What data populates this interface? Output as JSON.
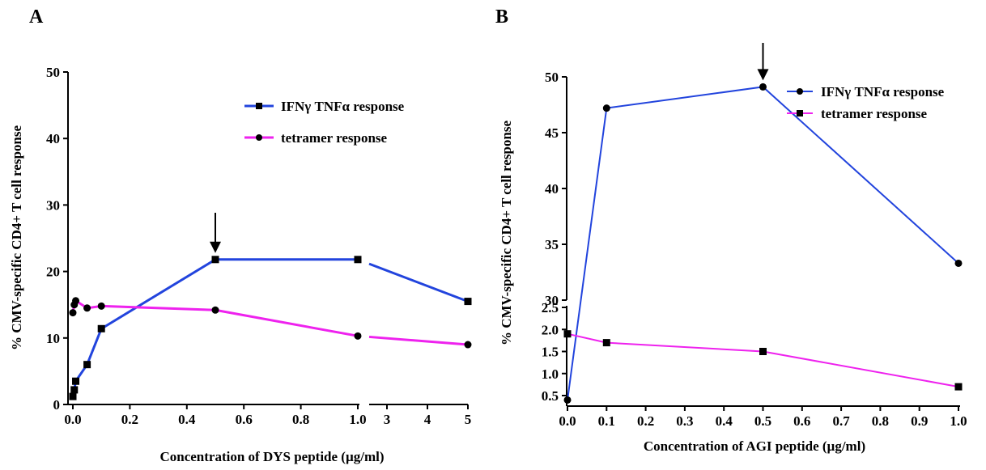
{
  "colors": {
    "blue": "#2244dd",
    "magenta": "#ee22ee",
    "axis": "#000000"
  },
  "chart_data": [
    {
      "panel_label": "A",
      "type": "line",
      "xlabel": "Concentration of DYS peptide (µg/ml)",
      "ylabel": "% CMV-specific CD4+ T cell response",
      "ylim": [
        0,
        50
      ],
      "y_ticks": [
        "0",
        "10",
        "20",
        "30",
        "40",
        "50"
      ],
      "x_broken": true,
      "x_segments": [
        {
          "xlim": [
            0,
            1.0
          ],
          "ticks": [
            "0.0",
            "0.2",
            "0.4",
            "0.6",
            "0.8",
            "1.0"
          ]
        },
        {
          "xlim": [
            2.6,
            5
          ],
          "ticks": [
            "3",
            "4",
            "5"
          ]
        }
      ],
      "series": [
        {
          "name": "IFNγ TNFα response",
          "color_key": "blue",
          "marker": "square",
          "x": [
            0,
            0.005,
            0.01,
            0.05,
            0.1,
            0.5,
            1.0,
            5
          ],
          "y": [
            1.2,
            2.2,
            3.5,
            6.0,
            11.4,
            21.8,
            21.8,
            15.5
          ]
        },
        {
          "name": "tetramer response",
          "color_key": "magenta",
          "marker": "circle",
          "x": [
            0,
            0.005,
            0.01,
            0.05,
            0.1,
            0.5,
            1.0,
            5
          ],
          "y": [
            13.8,
            15.0,
            15.6,
            14.5,
            14.8,
            14.2,
            10.3,
            9.0
          ]
        }
      ],
      "arrow_at": {
        "x": 0.5,
        "y": 21.8
      },
      "legend_placement": "top-right",
      "grid": false
    },
    {
      "panel_label": "B",
      "type": "line",
      "xlabel": "Concentration of AGI peptide (µg/ml)",
      "ylabel": "% CMV-specific CD4+ T cell response",
      "x_ticks": [
        "0.0",
        "0.1",
        "0.2",
        "0.3",
        "0.4",
        "0.5",
        "0.6",
        "0.7",
        "0.8",
        "0.9",
        "1.0"
      ],
      "xlim": [
        0,
        1.0
      ],
      "y_broken": true,
      "y_segments": [
        {
          "ylim": [
            30,
            50
          ],
          "ticks": [
            "30",
            "35",
            "40",
            "45",
            "50"
          ]
        },
        {
          "ylim": [
            0.5,
            2.5
          ],
          "ticks": [
            "0.5",
            "1.0",
            "1.5",
            "2.0",
            "2.5"
          ]
        }
      ],
      "series": [
        {
          "name": "IFNγ TNFα response",
          "color_key": "blue",
          "marker": "circle",
          "x": [
            0,
            0.1,
            0.5,
            1.0
          ],
          "y": [
            0.4,
            47.2,
            49.1,
            33.3
          ]
        },
        {
          "name": "tetramer response",
          "color_key": "magenta",
          "marker": "square",
          "x": [
            0,
            0.1,
            0.5,
            1.0
          ],
          "y": [
            1.9,
            1.7,
            1.5,
            0.7
          ]
        }
      ],
      "arrow_at": {
        "x": 0.5,
        "y": 49.1
      },
      "legend_placement": "top-right",
      "grid": false
    }
  ]
}
